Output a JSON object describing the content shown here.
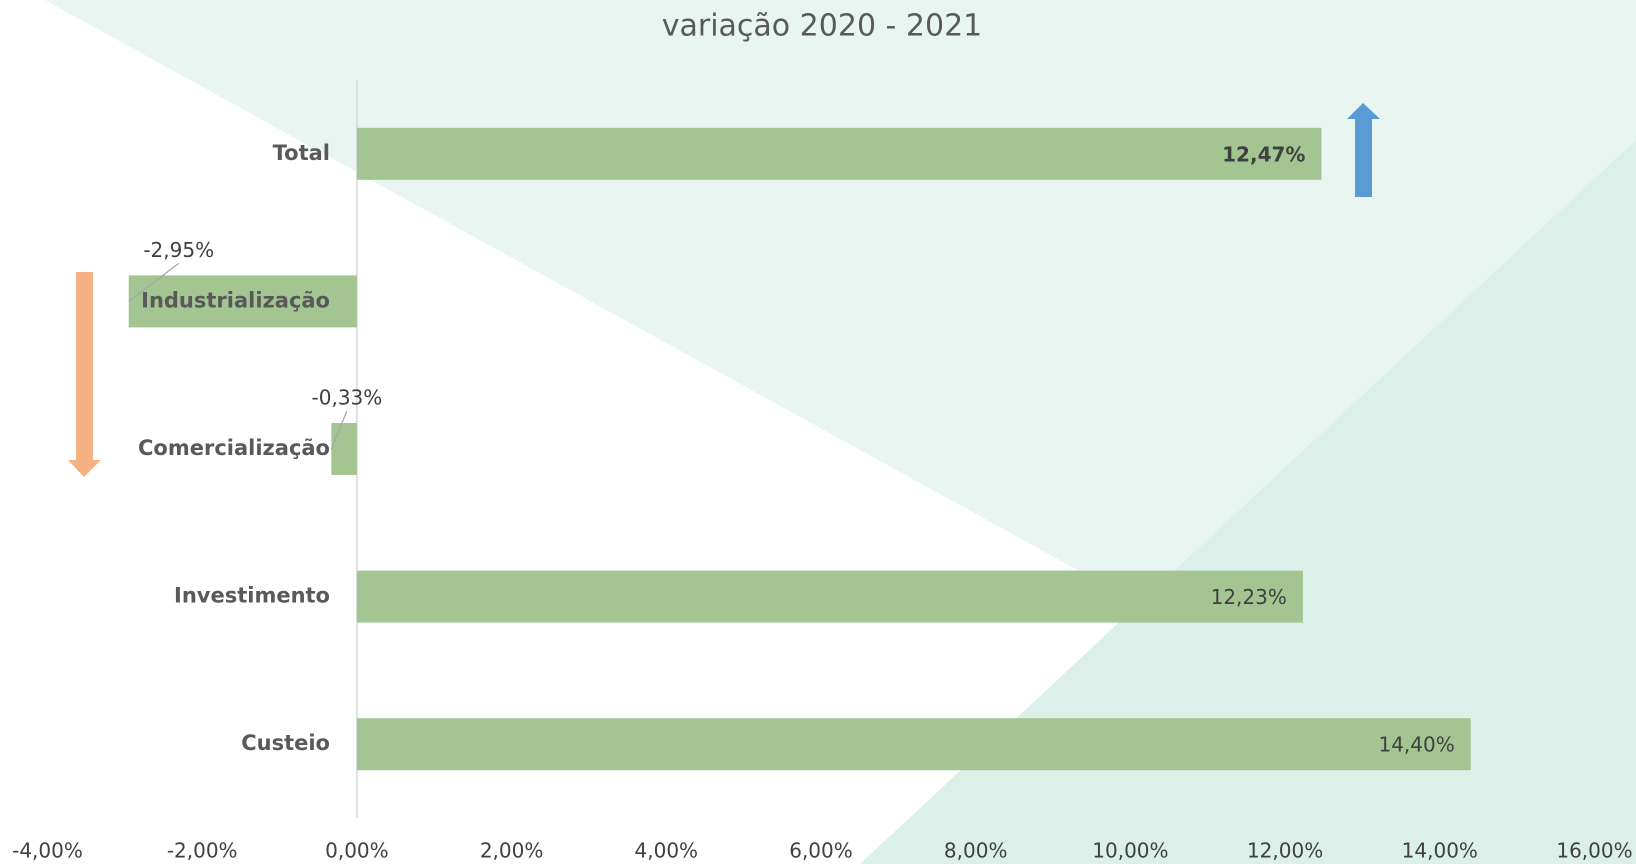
{
  "chart_data": {
    "type": "bar",
    "orientation": "horizontal",
    "title": "variação 2020 - 2021",
    "categories": [
      "Total",
      "Industrialização",
      "Comercialização",
      "Investimento",
      "Custeio"
    ],
    "values": [
      12.47,
      -2.95,
      -0.33,
      12.23,
      14.4
    ],
    "value_labels": [
      "12,47%",
      "-2,95%",
      "-0,33%",
      "12,23%",
      "14,40%"
    ],
    "color": "#a2c592",
    "xlim": [
      -4,
      16
    ],
    "xticks": [
      {
        "value": -4,
        "label": "-4,00%"
      },
      {
        "value": -2,
        "label": "-2,00%"
      },
      {
        "value": 0,
        "label": "0,00%"
      },
      {
        "value": 2,
        "label": "2,00%"
      },
      {
        "value": 4,
        "label": "4,00%"
      },
      {
        "value": 6,
        "label": "6,00%"
      },
      {
        "value": 8,
        "label": "8,00%"
      },
      {
        "value": 10,
        "label": "10,00%"
      },
      {
        "value": 12,
        "label": "12,00%"
      },
      {
        "value": 14,
        "label": "14,00%"
      },
      {
        "value": 16,
        "label": "16,00%"
      }
    ]
  }
}
